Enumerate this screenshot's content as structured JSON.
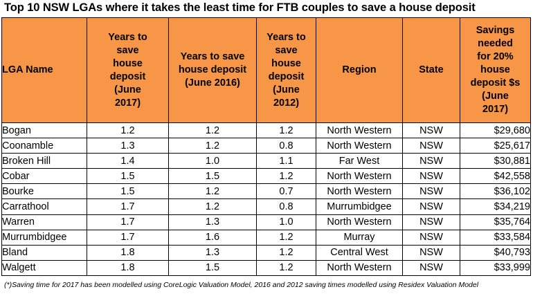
{
  "title": "Top 10 NSW LGAs where it takes the least time for FTB couples to save a house deposit",
  "header_color": "#f79646",
  "table": {
    "columns": [
      {
        "key": "lga",
        "label": "LGA Name"
      },
      {
        "key": "y2017",
        "label": "Years to save house deposit (June 2017)"
      },
      {
        "key": "y2016",
        "label": "Years to save house deposit (June 2016)"
      },
      {
        "key": "y2012",
        "label": "Years to save house deposit (June 2012)"
      },
      {
        "key": "region",
        "label": "Region"
      },
      {
        "key": "state",
        "label": "State"
      },
      {
        "key": "savings",
        "label": "Savings needed for 20% house deposit $s (June 2017)"
      }
    ],
    "rows": [
      {
        "lga": "Bogan",
        "y2017": "1.2",
        "y2016": "1.2",
        "y2012": "1.2",
        "region": "North Western",
        "state": "NSW",
        "savings": "$29,680"
      },
      {
        "lga": "Coonamble",
        "y2017": "1.3",
        "y2016": "1.2",
        "y2012": "0.8",
        "region": "North Western",
        "state": "NSW",
        "savings": "$25,617"
      },
      {
        "lga": "Broken Hill",
        "y2017": "1.4",
        "y2016": "1.0",
        "y2012": "1.1",
        "region": "Far West",
        "state": "NSW",
        "savings": "$30,881"
      },
      {
        "lga": "Cobar",
        "y2017": "1.5",
        "y2016": "1.5",
        "y2012": "1.2",
        "region": "North Western",
        "state": "NSW",
        "savings": "$42,558"
      },
      {
        "lga": "Bourke",
        "y2017": "1.5",
        "y2016": "1.2",
        "y2012": "0.7",
        "region": "North Western",
        "state": "NSW",
        "savings": "$36,102"
      },
      {
        "lga": "Carrathool",
        "y2017": "1.7",
        "y2016": "1.2",
        "y2012": "0.8",
        "region": "Murrumbidgee",
        "state": "NSW",
        "savings": "$34,219"
      },
      {
        "lga": "Warren",
        "y2017": "1.7",
        "y2016": "1.3",
        "y2012": "1.0",
        "region": "North Western",
        "state": "NSW",
        "savings": "$35,764"
      },
      {
        "lga": "Murrumbidgee",
        "y2017": "1.7",
        "y2016": "1.6",
        "y2012": "1.2",
        "region": "Murray",
        "state": "NSW",
        "savings": "$33,584"
      },
      {
        "lga": "Bland",
        "y2017": "1.8",
        "y2016": "1.3",
        "y2012": "1.2",
        "region": "Central West",
        "state": "NSW",
        "savings": "$40,793"
      },
      {
        "lga": "Walgett",
        "y2017": "1.8",
        "y2016": "1.5",
        "y2012": "1.2",
        "region": "North Western",
        "state": "NSW",
        "savings": "$33,999"
      }
    ]
  },
  "footnote": "(*)Saving time for 2017 has been modelled using CoreLogic Valuation Model, 2016 and 2012 saving times modelled using Residex Valuation Model"
}
